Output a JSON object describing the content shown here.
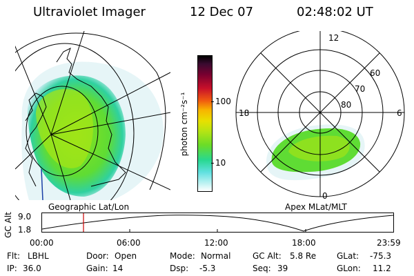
{
  "header": {
    "title": "Ultraviolet Imager",
    "date": "12 Dec 07",
    "time": "02:48:02 UT"
  },
  "left_panel": {
    "caption": "Geographic Lat/Lon"
  },
  "colorbar": {
    "unit_label": "photon cm⁻²s⁻¹",
    "ticks": [
      "100",
      "10"
    ]
  },
  "polar_panel": {
    "caption": "Apex MLat/MLT",
    "mlt_labels": [
      "12",
      "18",
      "6",
      "0"
    ],
    "lat_labels": [
      "60",
      "70",
      "80"
    ]
  },
  "altitude_plot": {
    "ylabel": "GC Alt",
    "y_ticks": [
      "9.0",
      "1.8"
    ],
    "x_ticks": [
      "00:00",
      "06:00",
      "12:00",
      "18:00",
      "23:59"
    ],
    "current_time_color": "#cc0000"
  },
  "status": {
    "row1": [
      {
        "label": "Flt:",
        "value": "LBHL"
      },
      {
        "label": "Door:",
        "value": "Open"
      },
      {
        "label": "Mode:",
        "value": "Normal"
      },
      {
        "label": "GC Alt:",
        "value": "5.8 Re"
      },
      {
        "label": "GLat:",
        "value": "-75.3"
      }
    ],
    "row2": [
      {
        "label": "IP:",
        "value": "36.0"
      },
      {
        "label": "Gain:",
        "value": "14"
      },
      {
        "label": "Dsp:",
        "value": "-5.3"
      },
      {
        "label": "Seq:",
        "value": "39"
      },
      {
        "label": "GLon:",
        "value": "11.2"
      }
    ]
  }
}
